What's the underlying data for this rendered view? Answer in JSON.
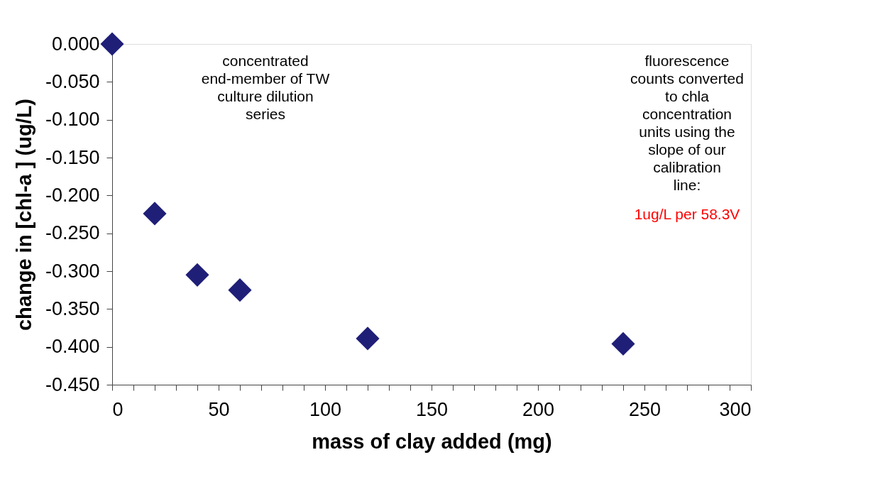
{
  "chart_data": {
    "type": "scatter",
    "xlabel": "mass of clay added (mg)",
    "ylabel": "change in [chl-a ] (ug/L)",
    "x": [
      0,
      20,
      40,
      60,
      120,
      240
    ],
    "series": [
      {
        "color": "#1f1f78",
        "values": [
          0.0,
          -0.224,
          -0.305,
          -0.325,
          -0.389,
          -0.396
        ]
      }
    ],
    "marker": "diamond",
    "grid": false,
    "xlim": [
      0,
      300
    ],
    "xticks": [
      0,
      {
        "value": 10,
        "label": null
      },
      {
        "value": 20,
        "label": null
      },
      {
        "value": 30,
        "label": null
      },
      {
        "value": 40,
        "label": null
      },
      50,
      {
        "value": 60,
        "label": null
      },
      {
        "value": 70,
        "label": null
      },
      {
        "value": 80,
        "label": null
      },
      {
        "value": 90,
        "label": null
      },
      100,
      {
        "value": 110,
        "label": null
      },
      {
        "value": 120,
        "label": null
      },
      {
        "value": 130,
        "label": null
      },
      {
        "value": 140,
        "label": null
      },
      150,
      {
        "value": 160,
        "label": null
      },
      {
        "value": 170,
        "label": null
      },
      {
        "value": 180,
        "label": null
      },
      {
        "value": 190,
        "label": null
      },
      200,
      {
        "value": 210,
        "label": null
      },
      {
        "value": 220,
        "label": null
      },
      {
        "value": 230,
        "label": null
      },
      {
        "value": 240,
        "label": null
      },
      250,
      {
        "value": 260,
        "label": null
      },
      {
        "value": 270,
        "label": null
      },
      {
        "value": 280,
        "label": null
      },
      {
        "value": 290,
        "label": null
      },
      300
    ],
    "ylim": [
      -0.45,
      0.0
    ],
    "yticks": [
      {
        "value": 0,
        "label": "0.000"
      },
      {
        "value": -0.05,
        "label": "-0.050"
      },
      {
        "value": -0.1,
        "label": "-0.100"
      },
      {
        "value": -0.15,
        "label": "-0.150"
      },
      {
        "value": -0.2,
        "label": "-0.200"
      },
      {
        "value": -0.25,
        "label": "-0.250"
      },
      {
        "value": -0.3,
        "label": "-0.300"
      },
      {
        "value": -0.35,
        "label": "-0.350"
      },
      {
        "value": -0.4,
        "label": "-0.400"
      },
      {
        "value": -0.45,
        "label": "-0.450"
      }
    ],
    "annotations": [
      "concentrated end-member of TW culture dilution series",
      "fluorescence counts converted to chla concentration units using the slope of our calibration line:",
      "1ug/L per 58.3V"
    ]
  }
}
